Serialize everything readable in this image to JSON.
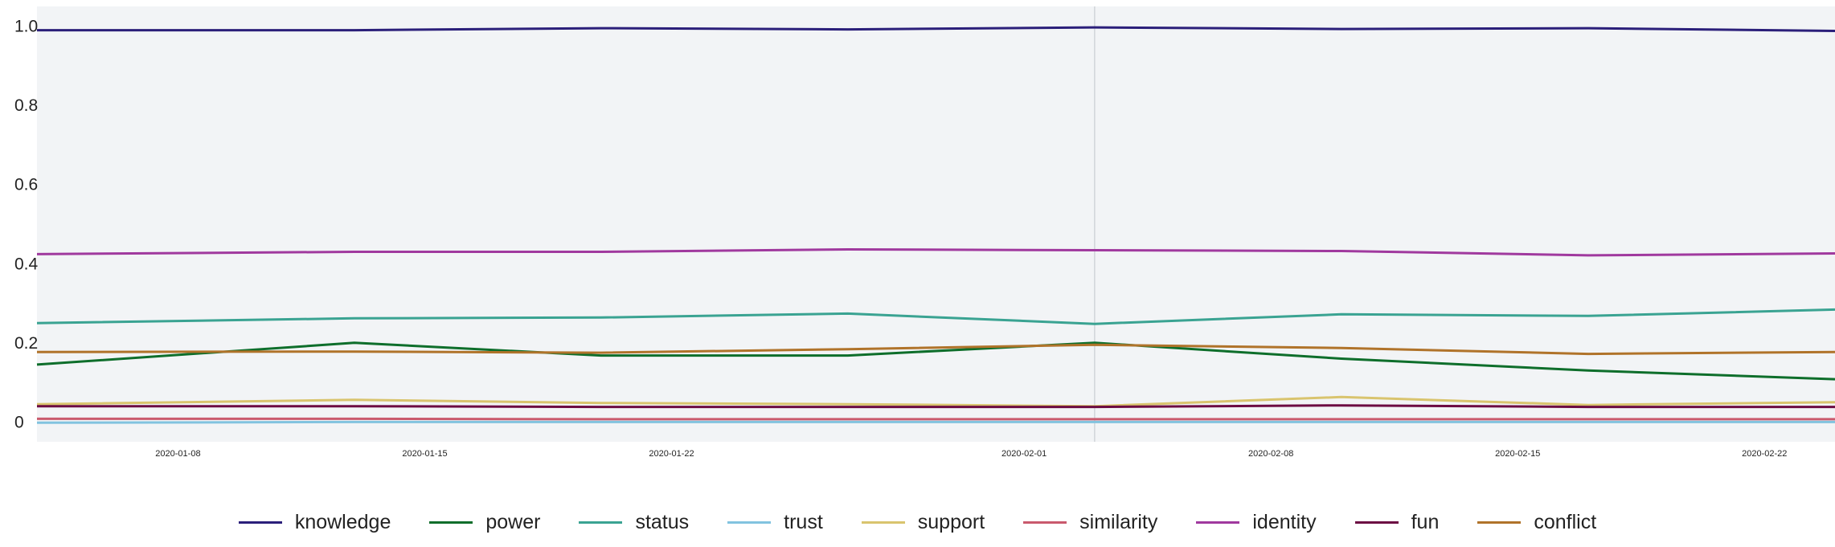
{
  "chart_data": {
    "type": "line",
    "x": [
      "2020-01-04",
      "2020-01-13",
      "2020-01-20",
      "2020-01-27",
      "2020-02-03",
      "2020-02-10",
      "2020-02-17",
      "2020-02-24"
    ],
    "xlim": [
      "2020-01-04",
      "2020-02-24"
    ],
    "x_ticks": [
      "2020-01-08",
      "2020-01-15",
      "2020-01-22",
      "2020-02-01",
      "2020-02-08",
      "2020-02-15",
      "2020-02-22"
    ],
    "ylim": [
      -0.05,
      1.05
    ],
    "y_ticks": [
      0,
      0.2,
      0.4,
      0.6,
      0.8,
      1.0
    ],
    "y_tick_labels": [
      "0",
      "0.2",
      "0.4",
      "0.6",
      "0.8",
      "1.0"
    ],
    "vertical_marker_x": "2020-02-03",
    "grid": false,
    "legend_position": "bottom-center",
    "background": "#f2f4f6",
    "series": [
      {
        "name": "knowledge",
        "color": "#2b1f7a",
        "values": [
          0.99,
          0.99,
          0.995,
          0.992,
          0.997,
          0.993,
          0.995,
          0.988
        ]
      },
      {
        "name": "power",
        "color": "#0e6e2b",
        "values": [
          0.145,
          0.2,
          0.168,
          0.168,
          0.2,
          0.16,
          0.13,
          0.108
        ]
      },
      {
        "name": "status",
        "color": "#3aa392",
        "values": [
          0.25,
          0.262,
          0.264,
          0.274,
          0.248,
          0.272,
          0.268,
          0.284
        ]
      },
      {
        "name": "trust",
        "color": "#82c3df",
        "values": [
          -0.002,
          0.0,
          0.0,
          0.0,
          0.0,
          0.0,
          0.0,
          0.0
        ]
      },
      {
        "name": "support",
        "color": "#d9c46e",
        "values": [
          0.045,
          0.056,
          0.048,
          0.045,
          0.04,
          0.063,
          0.043,
          0.05
        ]
      },
      {
        "name": "similarity",
        "color": "#c95a6d",
        "values": [
          0.008,
          0.008,
          0.007,
          0.007,
          0.007,
          0.007,
          0.007,
          0.007
        ]
      },
      {
        "name": "identity",
        "color": "#a0399e",
        "values": [
          0.424,
          0.43,
          0.43,
          0.436,
          0.434,
          0.432,
          0.421,
          0.426
        ]
      },
      {
        "name": "fun",
        "color": "#6c0b42",
        "values": [
          0.04,
          0.04,
          0.038,
          0.038,
          0.038,
          0.042,
          0.038,
          0.038
        ]
      },
      {
        "name": "conflict",
        "color": "#b0732a",
        "values": [
          0.177,
          0.178,
          0.175,
          0.184,
          0.195,
          0.187,
          0.172,
          0.177
        ]
      }
    ]
  }
}
